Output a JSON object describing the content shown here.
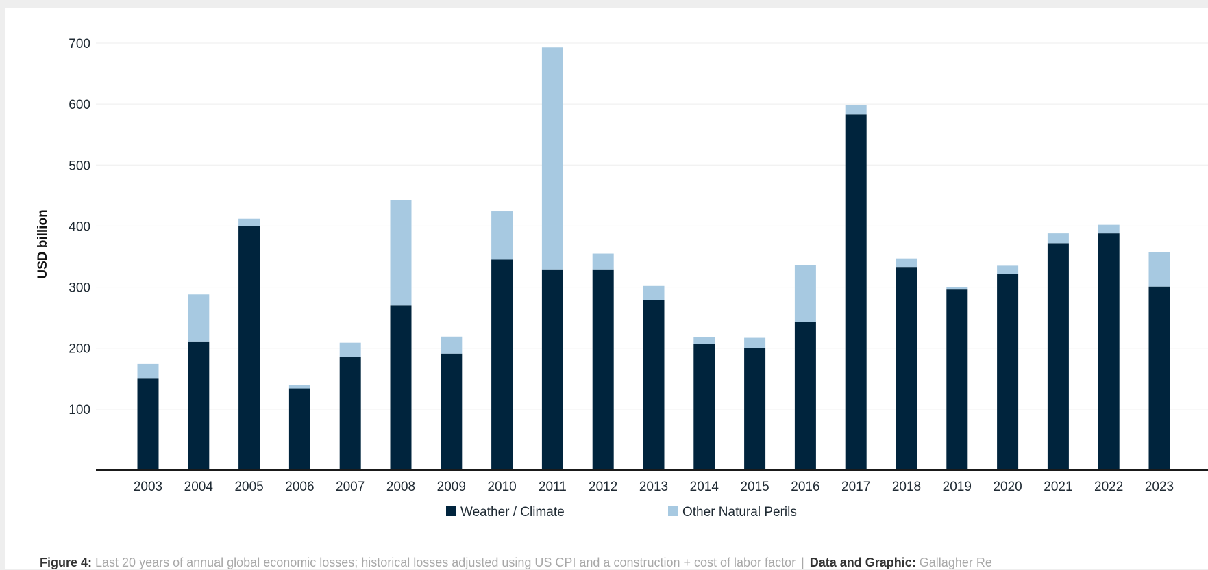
{
  "chart_data": {
    "type": "bar",
    "stacked": true,
    "title": "",
    "xlabel": "",
    "ylabel": "USD billion",
    "ylim": [
      0,
      700
    ],
    "yticks": [
      100,
      200,
      300,
      400,
      500,
      600,
      700
    ],
    "grid": true,
    "legend_position": "bottom-center",
    "categories": [
      "2003",
      "2004",
      "2005",
      "2006",
      "2007",
      "2008",
      "2009",
      "2010",
      "2011",
      "2012",
      "2013",
      "2014",
      "2015",
      "2016",
      "2017",
      "2018",
      "2019",
      "2020",
      "2021",
      "2022",
      "2023"
    ],
    "series": [
      {
        "name": "Weather / Climate",
        "color": "#00243d",
        "values": [
          150,
          210,
          400,
          134,
          186,
          270,
          191,
          345,
          329,
          329,
          279,
          207,
          200,
          243,
          583,
          333,
          296,
          321,
          372,
          388,
          301
        ]
      },
      {
        "name": "Other Natural Perils",
        "color": "#a7c9e1",
        "values": [
          24,
          78,
          12,
          6,
          23,
          173,
          28,
          79,
          364,
          26,
          23,
          11,
          17,
          93,
          15,
          14,
          4,
          14,
          16,
          14,
          56
        ]
      }
    ]
  },
  "caption": {
    "figure_label": "Figure 4:",
    "text": " Last 20 years of annual global economic losses; historical losses adjusted using US CPI and a construction + cost of labor factor",
    "separator": "|",
    "source_label": "Data and Graphic:",
    "source_text": " Gallagher Re"
  }
}
